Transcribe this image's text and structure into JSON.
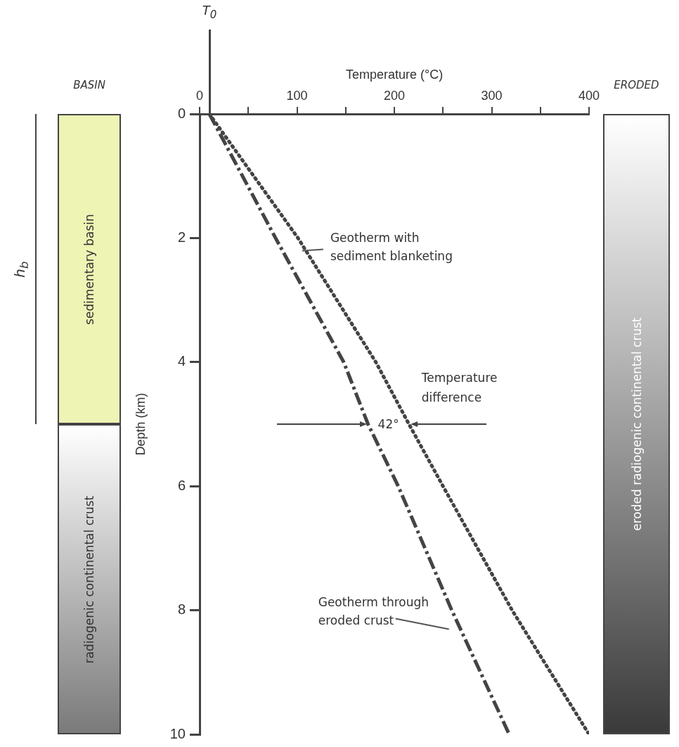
{
  "chart_data": {
    "type": "line",
    "xlabel": "Temperature (°C)",
    "ylabel": "Depth (km)",
    "xlim": [
      0,
      400
    ],
    "xticks": [
      0,
      {
        "value": 50,
        "label": null
      },
      100,
      {
        "value": 150,
        "label": null
      },
      200,
      {
        "value": 250,
        "label": null
      },
      300,
      {
        "value": 350,
        "label": null
      },
      400
    ],
    "ylim": [
      10,
      0
    ],
    "yticks": [
      0,
      2,
      4,
      6,
      8,
      10
    ],
    "grid": false,
    "legend": false,
    "marker": "none",
    "series": [
      {
        "name": "Geotherm with sediment blanketing",
        "color": "#444444",
        "line_style": "dotted",
        "x": [
          10,
          101,
          181,
          215,
          250,
          321,
          400
        ],
        "values": [
          0,
          2,
          4,
          5,
          6,
          8,
          10
        ]
      },
      {
        "name": "Geotherm through eroded crust",
        "color": "#444444",
        "line_style": "dashed",
        "x": [
          10,
          78,
          148,
          173,
          204,
          259,
          318
        ],
        "values": [
          0,
          2,
          4,
          5,
          6,
          8,
          10
        ]
      }
    ],
    "annotations": [
      "42°",
      "Temperature difference",
      "BASIN",
      "ERODED",
      "h$_{b}$",
      "sedimentary basin",
      "radiogenic continental crust",
      "eroded radiogenic continental crust",
      "T$_{0}$"
    ]
  }
}
